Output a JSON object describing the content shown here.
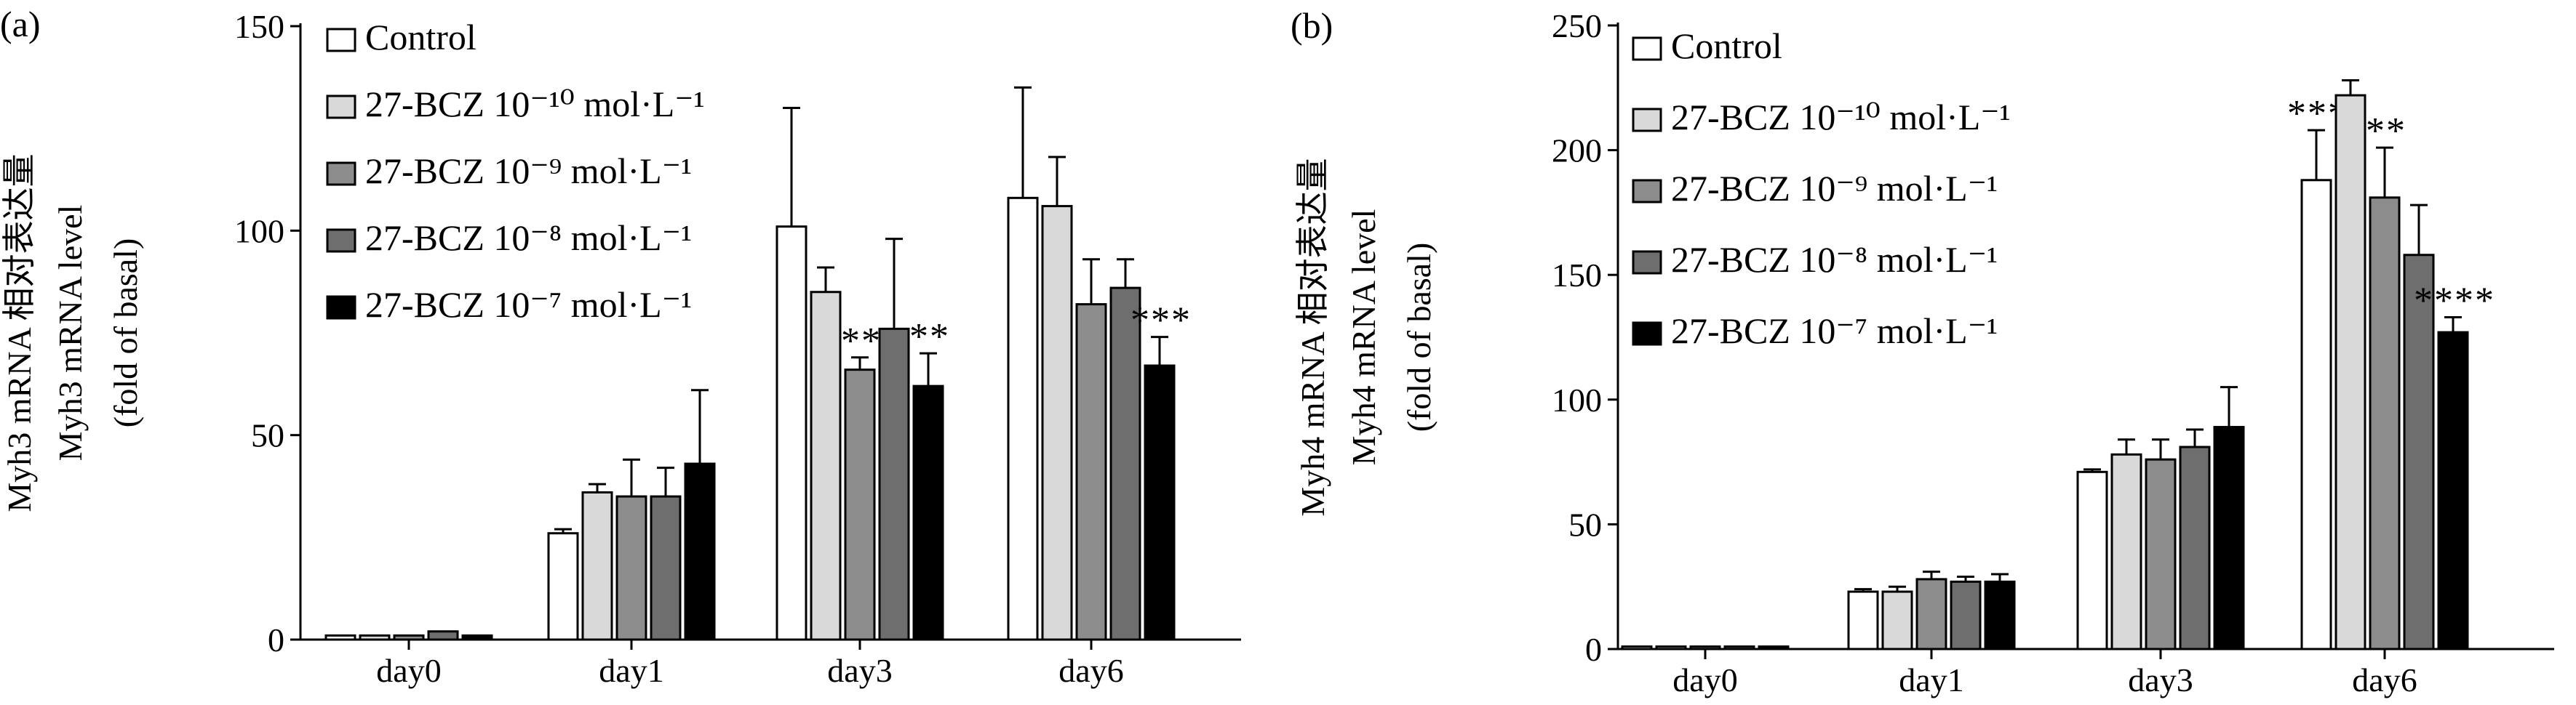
{
  "chart_data": [
    {
      "panel_label": "(a)",
      "type": "bar",
      "ylabel_lines": [
        "Myh3 mRNA 相对表达量",
        "Myh3 mRNA level",
        "(fold of basal)"
      ],
      "ylim": [
        0,
        150
      ],
      "yticks": [
        0,
        50,
        100,
        150
      ],
      "categories": [
        "day0",
        "day1",
        "day3",
        "day6"
      ],
      "legend_position": "top-left",
      "series": [
        {
          "name": "Control",
          "color": "#ffffff",
          "values": [
            1,
            26,
            101,
            108
          ],
          "errors": [
            0.5,
            1,
            29,
            27
          ],
          "sig": [
            "",
            "",
            "",
            ""
          ]
        },
        {
          "name": "27-BCZ 10⁻¹⁰ mol·L⁻¹",
          "color": "#d9d9d9",
          "values": [
            1,
            36,
            85,
            106
          ],
          "errors": [
            0.5,
            2,
            6,
            12
          ],
          "sig": [
            "",
            "",
            "",
            ""
          ]
        },
        {
          "name": "27-BCZ 10⁻⁹ mol·L⁻¹",
          "color": "#8c8c8c",
          "values": [
            1,
            35,
            66,
            82
          ],
          "errors": [
            0.5,
            9,
            3,
            11
          ],
          "sig": [
            "",
            "",
            "**",
            ""
          ]
        },
        {
          "name": "27-BCZ 10⁻⁸ mol·L⁻¹",
          "color": "#6e6e6e",
          "values": [
            2,
            35,
            76,
            86
          ],
          "errors": [
            0.5,
            7,
            22,
            7
          ],
          "sig": [
            "",
            "",
            "",
            ""
          ]
        },
        {
          "name": "27-BCZ 10⁻⁷ mol·L⁻¹",
          "color": "#000000",
          "values": [
            1,
            43,
            62,
            67
          ],
          "errors": [
            0.5,
            18,
            8,
            7
          ],
          "sig": [
            "",
            "",
            "**",
            "***"
          ]
        }
      ]
    },
    {
      "panel_label": "(b)",
      "type": "bar",
      "ylabel_lines": [
        "Myh4 mRNA 相对表达量",
        "Myh4 mRNA level",
        "(fold of basal)"
      ],
      "ylim": [
        0,
        250
      ],
      "yticks": [
        0,
        50,
        100,
        150,
        200,
        250
      ],
      "categories": [
        "day0",
        "day1",
        "day3",
        "day6"
      ],
      "legend_position": "top-left",
      "series": [
        {
          "name": "Control",
          "color": "#ffffff",
          "values": [
            1,
            23,
            71,
            188
          ],
          "errors": [
            0.5,
            1,
            1,
            20
          ],
          "sig": [
            "",
            "",
            "",
            "***"
          ]
        },
        {
          "name": "27-BCZ 10⁻¹⁰ mol·L⁻¹",
          "color": "#d9d9d9",
          "values": [
            1,
            23,
            78,
            222
          ],
          "errors": [
            0.5,
            2,
            6,
            6
          ],
          "sig": [
            "",
            "",
            "",
            ""
          ]
        },
        {
          "name": "27-BCZ 10⁻⁹ mol·L⁻¹",
          "color": "#8c8c8c",
          "values": [
            1,
            28,
            76,
            181
          ],
          "errors": [
            0.5,
            3,
            8,
            20
          ],
          "sig": [
            "",
            "",
            "",
            "**"
          ]
        },
        {
          "name": "27-BCZ 10⁻⁸ mol·L⁻¹",
          "color": "#6e6e6e",
          "values": [
            1,
            27,
            81,
            158
          ],
          "errors": [
            0.5,
            2,
            7,
            20
          ],
          "sig": [
            "",
            "",
            "",
            ""
          ]
        },
        {
          "name": "27-BCZ 10⁻⁷ mol·L⁻¹",
          "color": "#000000",
          "values": [
            1,
            27,
            89,
            127
          ],
          "errors": [
            0.5,
            3,
            16,
            6
          ],
          "sig": [
            "",
            "",
            "",
            "****"
          ]
        }
      ]
    }
  ]
}
